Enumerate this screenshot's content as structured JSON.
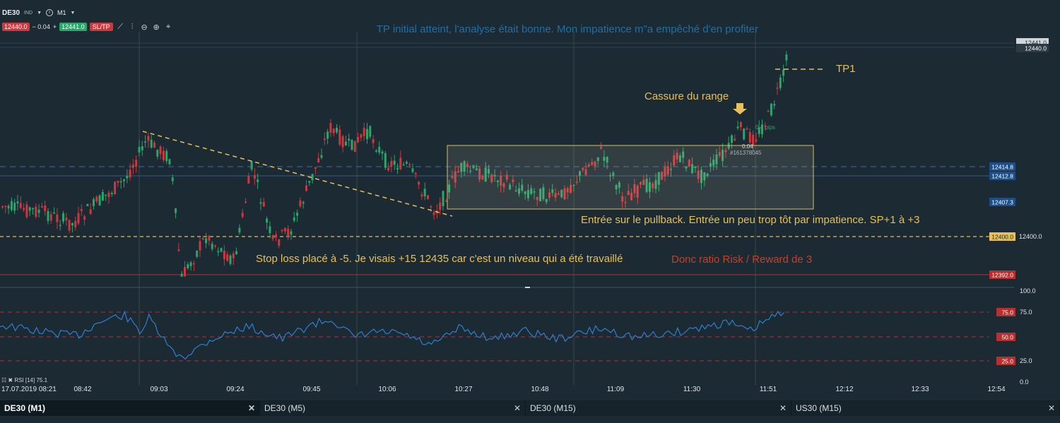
{
  "header": {
    "symbol": "DE30",
    "type_label": "IND",
    "info_icon": "info-circle-icon",
    "timeframe": "M1"
  },
  "pricebar": {
    "sell": "12440.0",
    "spread": "− 0.04",
    "plus": "+",
    "buy": "12441.0",
    "sltp": "SL/TP"
  },
  "tools": [
    "line-chart-icon",
    "candle-settings-icon",
    "zoom-out-icon",
    "zoom-in-icon",
    "crosshair-icon"
  ],
  "annotations": {
    "title": "TP initial atteint, l'analyse était bonne. Mon impatience m\"a empêché d'en profiter",
    "tp1": "TP1",
    "breakout": "Cassure du range",
    "pip_badge": "0.4 pips",
    "order_value": "0.04",
    "order_id": "#161378045",
    "entry": "Entrée sur le pullback. Entrée un peu trop tôt par impatience. SP+1 à +3",
    "stop": "Stop loss placé à -5. Je visais +15 12435 car c'est un niveau qui a été travaillé",
    "ratio": "Donc ratio Risk / Reward de 3"
  },
  "price_levels": {
    "top1": "12441.0",
    "top2": "12440.0",
    "blue1": "12414.8",
    "blue2": "12412.8",
    "range_low": "12407.3",
    "yellow": "12400.0",
    "axis_yellow": "12400.0",
    "red": "12392.0"
  },
  "rsi": {
    "label": "RSI [14] 75.1",
    "levels": [
      "75.0",
      "50.0",
      "25.0"
    ],
    "axis": [
      "100.0",
      "75.0",
      "25.0",
      "0.0"
    ]
  },
  "time_axis": [
    "17.07.2019 08:21",
    "08:42",
    "09:03",
    "09:24",
    "09:45",
    "10:06",
    "10:27",
    "10:48",
    "11:09",
    "11:30",
    "11:51",
    "12:12",
    "12:33",
    "12:54"
  ],
  "tabs": [
    {
      "label": "DE30 (M1)",
      "active": true
    },
    {
      "label": "DE30 (M5)",
      "active": false
    },
    {
      "label": "DE30 (M15)",
      "active": false
    },
    {
      "label": "US30 (M15)",
      "active": false
    }
  ],
  "colors": {
    "background": "#1b2a33",
    "bull": "#2aa66a",
    "bear": "#d1363c",
    "annotation_yellow": "#e6c05a",
    "title_blue": "#1f6fa6",
    "ratio_red": "#c0442c",
    "rsi_line": "#2f7fd0"
  }
}
